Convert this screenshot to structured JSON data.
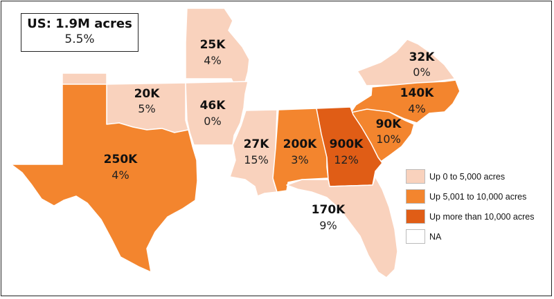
{
  "colors": {
    "low": "#f9d2bd",
    "mid": "#f3852e",
    "high": "#e05d16",
    "na": "#ffffff",
    "outline": "#bdbdbd"
  },
  "summary": {
    "title": "US: 1.9M acres",
    "pct": "5.5%"
  },
  "states": {
    "MO": {
      "value": "25K",
      "pct": "4%",
      "category": "low"
    },
    "VA": {
      "value": "32K",
      "pct": "0%",
      "category": "low"
    },
    "OK": {
      "value": "20K",
      "pct": "5%",
      "category": "low"
    },
    "AR": {
      "value": "46K",
      "pct": "0%",
      "category": "low"
    },
    "NC": {
      "value": "140K",
      "pct": "4%",
      "category": "mid"
    },
    "SC": {
      "value": "90K",
      "pct": "10%",
      "category": "mid"
    },
    "TX": {
      "value": "250K",
      "pct": "4%",
      "category": "mid"
    },
    "MS": {
      "value": "27K",
      "pct": "15%",
      "category": "low"
    },
    "AL": {
      "value": "200K",
      "pct": "3%",
      "category": "mid"
    },
    "GA": {
      "value": "900K",
      "pct": "12%",
      "category": "high"
    },
    "FL": {
      "value": "170K",
      "pct": "9%",
      "category": "low"
    },
    "LA": {
      "category": "na"
    },
    "TN": {
      "category": "na"
    },
    "KY": {
      "category": "na"
    }
  },
  "legend": [
    {
      "label": "Up 0 to 5,000 acres",
      "category": "low"
    },
    {
      "label": "Up 5,001 to 10,000 acres",
      "category": "mid"
    },
    {
      "label": "Up more than 10,000 acres",
      "category": "high"
    },
    {
      "label": "NA",
      "category": "na"
    }
  ]
}
